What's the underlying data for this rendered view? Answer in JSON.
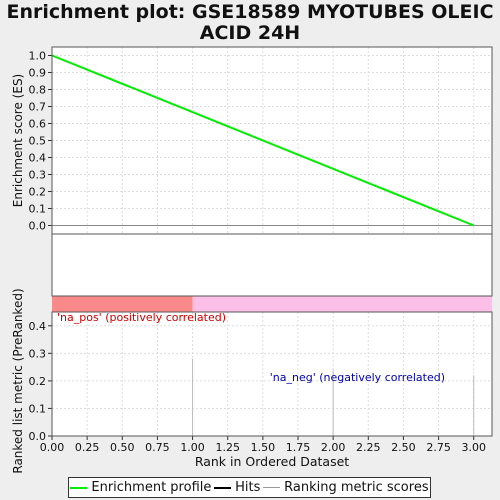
{
  "chart_data": {
    "title": "Enrichment plot: GSE18589 MYOTUBES OLEIC ACID 24H",
    "top_panel": {
      "type": "line",
      "ylabel": "Enrichment score (ES)",
      "ylim": [
        -0.05,
        1.05
      ],
      "yticks": [
        "0.0",
        "0.1",
        "0.2",
        "0.3",
        "0.4",
        "0.5",
        "0.6",
        "0.7",
        "0.8",
        "0.9",
        "1.0"
      ],
      "grid": true,
      "series": [
        {
          "name": "Enrichment profile",
          "color": "#00ee00",
          "x": [
            0,
            3
          ],
          "y": [
            1.0,
            0.0
          ]
        }
      ]
    },
    "hits_panel": {
      "type": "line",
      "hits_x": []
    },
    "correlation_bar": {
      "positive_color": "#fa8a8a",
      "negative_color": "#fcc0e8",
      "split_x": 1.0,
      "positive_label": "'na_pos' (positively correlated)",
      "negative_label": "'na_neg' (negatively correlated)",
      "positive_label_color": "#cc0000",
      "negative_label_color": "#0000aa"
    },
    "bottom_panel": {
      "type": "bar",
      "ylabel": "Ranked list metric (PreRanked)",
      "xlabel": "Rank in Ordered Dataset",
      "ylim": [
        0,
        0.45
      ],
      "yticks": [
        "0.0",
        "0.1",
        "0.2",
        "0.3",
        "0.4"
      ],
      "xlim": [
        0,
        3.13
      ],
      "xticks": [
        "0.00",
        "0.25",
        "0.50",
        "0.75",
        "1.00",
        "1.25",
        "1.50",
        "1.75",
        "2.00",
        "2.25",
        "2.50",
        "2.75",
        "3.00"
      ],
      "grid": true,
      "bar_color": "#bbbbbb",
      "x": [
        1,
        2,
        3
      ],
      "values": [
        0.28,
        0.24,
        0.22
      ]
    },
    "legend": {
      "items": [
        {
          "label": "Enrichment profile",
          "color": "#00ee00"
        },
        {
          "label": "Hits",
          "color": "#000000"
        },
        {
          "label": "Ranking metric scores",
          "color": "#bbbbbb"
        }
      ],
      "placement": "bottom"
    }
  }
}
